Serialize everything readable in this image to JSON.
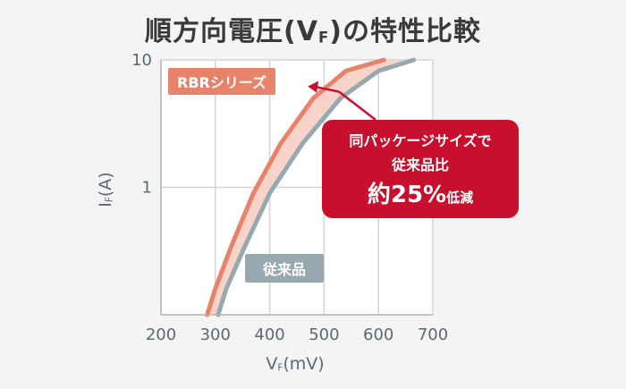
{
  "title": {
    "prefix": "順方向電圧(V",
    "sub": "F",
    "suffix": ")の特性比較"
  },
  "chart_data": {
    "type": "line",
    "title": "順方向電圧(VF)の特性比較",
    "xlabel": "VF(mV)",
    "ylabel": "IF(A)",
    "xlim": [
      200,
      700
    ],
    "ylim": [
      0.1,
      10
    ],
    "y_scale": "log",
    "x_ticks": [
      200,
      300,
      400,
      500,
      600,
      700
    ],
    "y_ticks": [
      1,
      10
    ],
    "grid": true,
    "series": [
      {
        "name": "RBRシリーズ",
        "color": "#e8826a",
        "x": [
          285,
          300,
          330,
          370,
          420,
          480,
          540,
          610
        ],
        "y": [
          0.1,
          0.16,
          0.35,
          0.9,
          2.2,
          5.0,
          8.2,
          10
        ]
      },
      {
        "name": "従来品",
        "color": "#98a8b0",
        "x": [
          305,
          320,
          355,
          400,
          460,
          530,
          600,
          665
        ],
        "y": [
          0.1,
          0.16,
          0.35,
          0.9,
          2.2,
          5.0,
          8.2,
          10
        ]
      }
    ],
    "annotation": {
      "lines": [
        "同パッケージサイズで",
        "従来品比"
      ],
      "big": "約25%",
      "small": "低減"
    }
  },
  "axis_labels": {
    "y_main": "I",
    "y_sub": "F",
    "y_unit": "(A)",
    "x_main": "V",
    "x_sub": "F",
    "x_unit": "(mV)"
  },
  "colors": {
    "rbr": "#e8826a",
    "conventional": "#98a8b0",
    "callout": "#c8102e"
  }
}
